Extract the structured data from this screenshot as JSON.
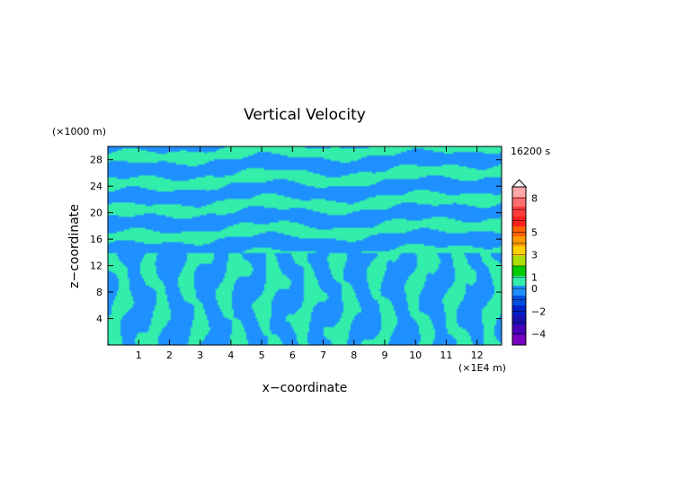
{
  "chart_data": {
    "type": "heatmap",
    "title": "Vertical Velocity",
    "xlabel": "x−coordinate",
    "ylabel": "z−coordinate",
    "x_unit": "(×1E4 m)",
    "y_unit": "(×1000 m)",
    "time_label": "16200 s",
    "xlim": [
      0,
      12.8
    ],
    "ylim": [
      0,
      30
    ],
    "x_ticks": [
      "1",
      "2",
      "3",
      "4",
      "5",
      "6",
      "7",
      "8",
      "9",
      "10",
      "11",
      "12"
    ],
    "y_ticks": [
      "4",
      "8",
      "12",
      "16",
      "20",
      "24",
      "28"
    ],
    "colorbar": {
      "labels": [
        "8",
        "5",
        "3",
        "1",
        "0",
        "−2",
        "−4"
      ],
      "levels": [
        -5,
        -4,
        -3,
        -2,
        -1,
        0,
        1,
        2,
        3,
        4,
        5,
        6,
        7,
        8,
        9
      ],
      "colors": [
        "#7a00c0",
        "#4a00b8",
        "#1a10b0",
        "#0020c8",
        "#0050e0",
        "#1e90ff",
        "#33eeaa",
        "#00cc00",
        "#aadd00",
        "#ffd000",
        "#ff9a00",
        "#ff6000",
        "#ff2020",
        "#ff3a3a",
        "#ff7070",
        "#ffa8a8"
      ]
    },
    "field_colors": {
      "negative": "#1e90ff",
      "positive": "#33eeaa"
    }
  }
}
